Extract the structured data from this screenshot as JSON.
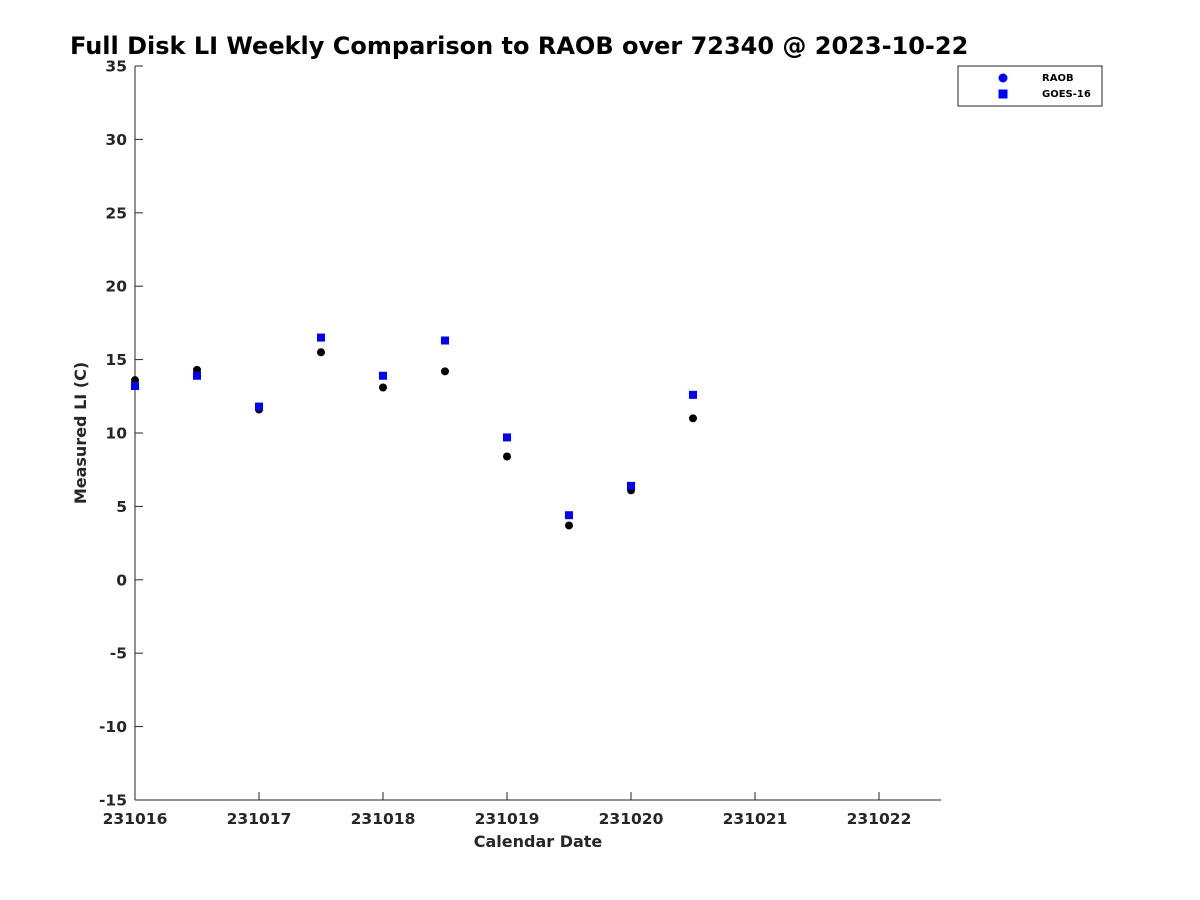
{
  "chart_data": {
    "type": "scatter",
    "title": "Full Disk LI Weekly Comparison to RAOB over 72340 @ 2023-10-22",
    "xlabel": "Calendar Date",
    "ylabel": "Measured LI (C)",
    "xlim": [
      0,
      6.5
    ],
    "ylim": [
      -15,
      35
    ],
    "x_ticks": [
      {
        "value": 0,
        "label": "231016"
      },
      {
        "value": 1,
        "label": "231017"
      },
      {
        "value": 2,
        "label": "231018"
      },
      {
        "value": 3,
        "label": "231019"
      },
      {
        "value": 4,
        "label": "231020"
      },
      {
        "value": 5,
        "label": "231021"
      },
      {
        "value": 6,
        "label": "231022"
      }
    ],
    "y_ticks": [
      {
        "value": 35,
        "label": "35"
      },
      {
        "value": 30,
        "label": "30"
      },
      {
        "value": 25,
        "label": "25"
      },
      {
        "value": 20,
        "label": "20"
      },
      {
        "value": 15,
        "label": "15"
      },
      {
        "value": 10,
        "label": "10"
      },
      {
        "value": 5,
        "label": "5"
      },
      {
        "value": 0,
        "label": "0"
      },
      {
        "value": -5,
        "label": "-5"
      },
      {
        "value": -10,
        "label": "-10"
      },
      {
        "value": -15,
        "label": "-15"
      }
    ],
    "legend_position": "top-right",
    "series": [
      {
        "name": "RAOB",
        "marker": "circle",
        "color": "#000000",
        "legend_color": "#0000ff",
        "points": [
          {
            "x": 0.0,
            "y": 13.6
          },
          {
            "x": 0.5,
            "y": 14.3
          },
          {
            "x": 1.0,
            "y": 11.6
          },
          {
            "x": 1.5,
            "y": 15.5
          },
          {
            "x": 2.0,
            "y": 13.1
          },
          {
            "x": 2.5,
            "y": 14.2
          },
          {
            "x": 3.0,
            "y": 8.4
          },
          {
            "x": 3.5,
            "y": 3.7
          },
          {
            "x": 4.0,
            "y": 6.1
          },
          {
            "x": 4.5,
            "y": 11.0
          }
        ]
      },
      {
        "name": "GOES-16",
        "marker": "square",
        "color": "#0000ff",
        "legend_color": "#0000ff",
        "points": [
          {
            "x": 0.0,
            "y": 13.2
          },
          {
            "x": 0.5,
            "y": 13.9
          },
          {
            "x": 1.0,
            "y": 11.8
          },
          {
            "x": 1.5,
            "y": 16.5
          },
          {
            "x": 2.0,
            "y": 13.9
          },
          {
            "x": 2.5,
            "y": 16.3
          },
          {
            "x": 3.0,
            "y": 9.7
          },
          {
            "x": 3.5,
            "y": 4.4
          },
          {
            "x": 4.0,
            "y": 6.4
          },
          {
            "x": 4.5,
            "y": 12.6
          }
        ]
      }
    ]
  }
}
